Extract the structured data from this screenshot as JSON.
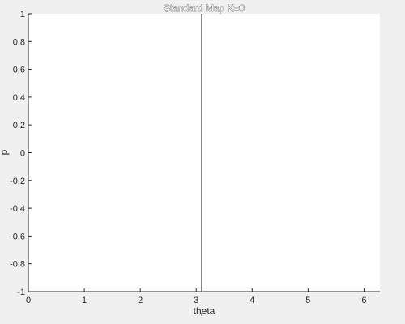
{
  "chart_data": {
    "type": "line",
    "title": "Standard Map K=0",
    "xlabel": "theta",
    "ylabel": "p",
    "xlim": [
      0,
      6.2832
    ],
    "ylim": [
      -1,
      1
    ],
    "xticks": [
      0,
      1,
      2,
      3,
      4,
      5,
      6
    ],
    "xtick_labels": [
      "0",
      "1",
      "2",
      "3",
      "4",
      "5",
      "6"
    ],
    "yticks": [
      -1,
      -0.8,
      -0.6,
      -0.4,
      -0.2,
      0,
      0.2,
      0.4,
      0.6,
      0.8,
      1
    ],
    "ytick_labels": [
      "-1",
      "-0.8",
      "-0.6",
      "-0.4",
      "-0.2",
      "0",
      "0.2",
      "0.4",
      "0.6",
      "0.8",
      "1"
    ],
    "grid": false,
    "series": [
      {
        "x": [
          3.1,
          3.1
        ],
        "y": [
          -1,
          1
        ],
        "color": "#000000"
      }
    ]
  }
}
